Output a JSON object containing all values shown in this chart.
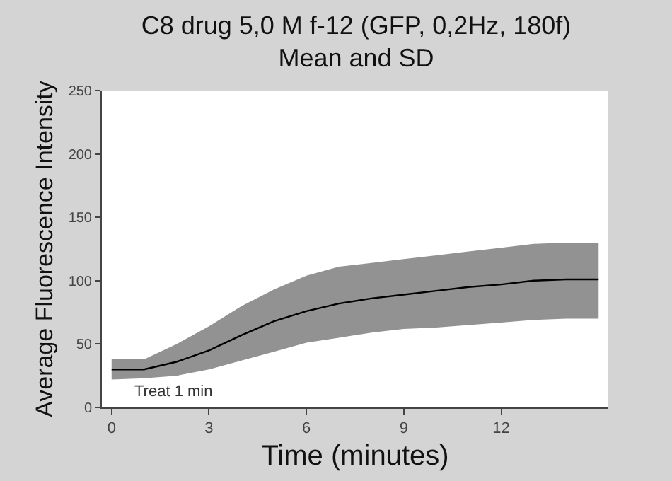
{
  "chart_data": {
    "type": "line",
    "title": "C8 drug 5,0 M f-12 (GFP, 0,2Hz, 180f)",
    "subtitle": "Mean and SD",
    "xlabel": "Time (minutes)",
    "ylabel": "Average Fluorescence Intensity",
    "x": [
      0,
      1,
      2,
      3,
      4,
      5,
      6,
      7,
      8,
      9,
      10,
      11,
      12,
      13,
      14,
      15
    ],
    "series": [
      {
        "color": "#000000",
        "values": [
          30,
          30,
          36,
          45,
          57,
          68,
          76,
          82,
          86,
          89,
          92,
          95,
          97,
          100,
          101,
          101
        ],
        "lower": [
          22,
          23,
          25,
          30,
          37,
          44,
          51,
          55,
          59,
          62,
          63,
          65,
          67,
          69,
          70,
          70
        ],
        "upper": [
          38,
          38,
          50,
          64,
          80,
          93,
          104,
          111,
          114,
          117,
          120,
          123,
          126,
          129,
          130,
          130
        ]
      }
    ],
    "xlim": [
      -0.3,
      15.3
    ],
    "xticks": [
      0,
      3,
      6,
      9,
      12
    ],
    "ylim": [
      0,
      250
    ],
    "yticks": [
      0,
      50,
      100,
      150,
      200,
      250
    ],
    "annotations": [
      "Treat 1 min"
    ],
    "grid": false
  }
}
